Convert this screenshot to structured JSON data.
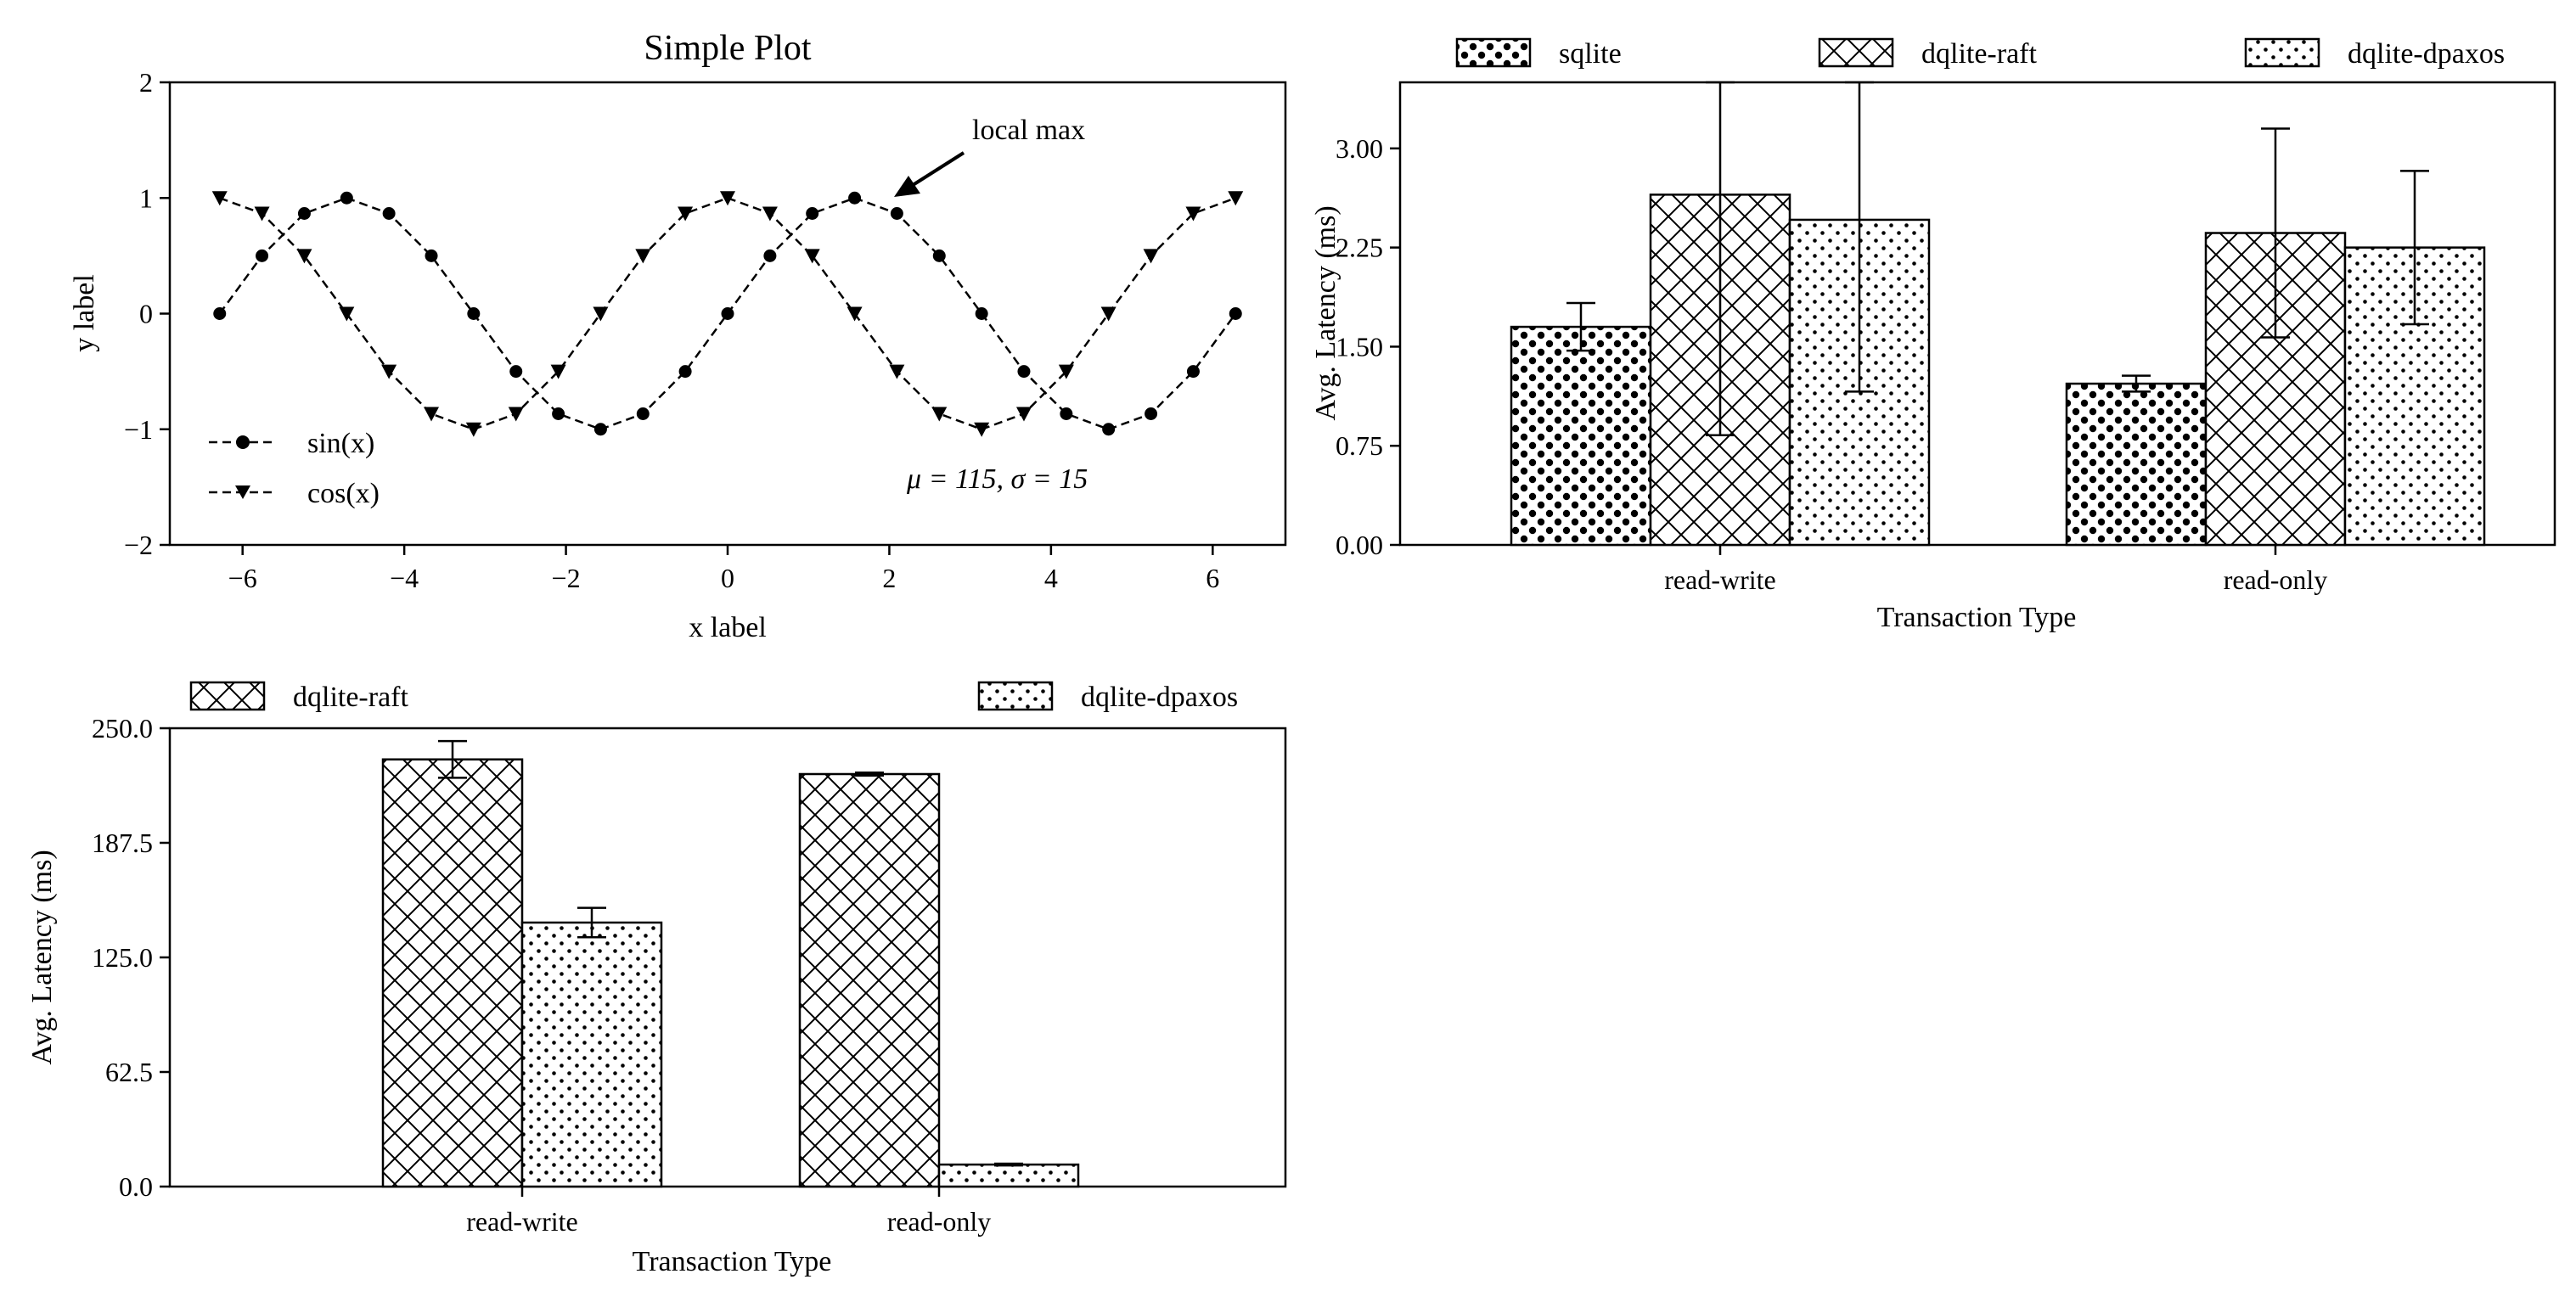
{
  "chart_data": [
    {
      "type": "line",
      "title": "Simple Plot",
      "xlabel": "x label",
      "ylabel": "y label",
      "xlim": [
        -6.9,
        6.9
      ],
      "ylim": [
        -2,
        2
      ],
      "xticks": [
        -6,
        -4,
        -2,
        0,
        2,
        4,
        6
      ],
      "xtick_labels": [
        "−6",
        "−4",
        "−2",
        "0",
        "2",
        "4",
        "6"
      ],
      "yticks": [
        -2,
        -1,
        0,
        1,
        2
      ],
      "ytick_labels": [
        "−2",
        "−1",
        "0",
        "1",
        "2"
      ],
      "grid": false,
      "legend": "lower-left",
      "x": [
        -6.283,
        -5.76,
        -5.236,
        -4.712,
        -4.189,
        -3.665,
        -3.142,
        -2.618,
        -2.094,
        -1.571,
        -1.047,
        -0.524,
        0.0,
        0.524,
        1.047,
        1.571,
        2.094,
        2.618,
        3.142,
        3.665,
        4.189,
        4.712,
        5.236,
        5.76,
        6.283
      ],
      "series": [
        {
          "name": "sin(x)",
          "marker": "circle",
          "linestyle": "dashed",
          "values": [
            0.0,
            0.5,
            0.866,
            1.0,
            0.866,
            0.5,
            0.0,
            -0.5,
            -0.866,
            -1.0,
            -0.866,
            -0.5,
            0.0,
            0.5,
            0.866,
            1.0,
            0.866,
            0.5,
            0.0,
            -0.5,
            -0.866,
            -1.0,
            -0.866,
            -0.5,
            0.0
          ]
        },
        {
          "name": "cos(x)",
          "marker": "triangle-down",
          "linestyle": "dashed",
          "values": [
            1.0,
            0.866,
            0.5,
            0.0,
            -0.5,
            -0.866,
            -1.0,
            -0.866,
            -0.5,
            0.0,
            0.5,
            0.866,
            1.0,
            0.866,
            0.5,
            0.0,
            -0.5,
            -0.866,
            -1.0,
            -0.866,
            -0.5,
            0.0,
            0.5,
            0.866,
            1.0
          ]
        }
      ],
      "annotations": [
        {
          "text": "local max",
          "arrow_to": [
            2.0,
            1.0
          ],
          "text_at": [
            3.0,
            1.5
          ]
        },
        {
          "text": "μ = 115,  σ = 15",
          "at": [
            4.4,
            -1.45
          ]
        }
      ]
    },
    {
      "type": "bar",
      "xlabel": "Transaction Type",
      "ylabel": "Avg. Latency (ms)",
      "categories": [
        "read-write",
        "read-only"
      ],
      "ylim": [
        0,
        3.5
      ],
      "yticks": [
        0,
        0.75,
        1.5,
        2.25,
        3.0
      ],
      "ytick_labels": [
        "0.00",
        "0.75",
        "1.50",
        "2.25",
        "3.00"
      ],
      "legend": "top-outside",
      "series": [
        {
          "name": "sqlite",
          "hatch": "dense-dots",
          "values": [
            1.65,
            1.22
          ],
          "errors": [
            0.18,
            0.06
          ]
        },
        {
          "name": "dqlite-raft",
          "hatch": "crosshatch",
          "values": [
            2.65,
            2.36
          ],
          "errors": [
            1.82,
            0.79
          ]
        },
        {
          "name": "dqlite-dpaxos",
          "hatch": "dots",
          "values": [
            2.46,
            2.25
          ],
          "errors": [
            1.3,
            0.58
          ]
        }
      ]
    },
    {
      "type": "bar",
      "xlabel": "Transaction Type",
      "ylabel": "Avg. Latency (ms)",
      "categories": [
        "read-write",
        "read-only"
      ],
      "ylim": [
        0,
        250
      ],
      "yticks": [
        0,
        62.5,
        125,
        187.5,
        250
      ],
      "ytick_labels": [
        "0.0",
        "62.5",
        "125.0",
        "187.5",
        "250.0"
      ],
      "legend": "top-outside",
      "series": [
        {
          "name": "dqlite-raft",
          "hatch": "crosshatch",
          "values": [
            233,
            225
          ],
          "errors": [
            10,
            0.8
          ]
        },
        {
          "name": "dqlite-dpaxos",
          "hatch": "dots",
          "values": [
            144,
            12
          ],
          "errors": [
            8,
            0.5
          ]
        }
      ]
    }
  ]
}
